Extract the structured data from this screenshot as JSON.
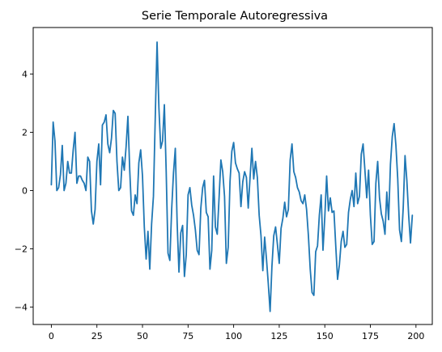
{
  "chart_data": {
    "type": "line",
    "title": "Serie Temporale Autoregressiva",
    "xlabel": "",
    "ylabel": "",
    "xlim": [
      -9.95,
      208.95
    ],
    "ylim": [
      -4.6,
      5.6
    ],
    "x_ticks": [
      0,
      25,
      50,
      75,
      100,
      125,
      150,
      175,
      200
    ],
    "y_ticks": [
      -4,
      -2,
      0,
      2,
      4
    ],
    "grid": false,
    "line_color": "#1f77b4",
    "series": [
      {
        "values": [
          0.2,
          2.35,
          1.7,
          0.0,
          0.1,
          0.55,
          1.55,
          0.0,
          0.25,
          1.0,
          0.6,
          0.6,
          1.4,
          2.0,
          0.25,
          0.5,
          0.5,
          0.35,
          0.25,
          0.0,
          1.15,
          1.0,
          -0.7,
          -1.15,
          -0.65,
          1.0,
          1.6,
          0.2,
          2.25,
          2.35,
          2.6,
          1.6,
          1.3,
          1.8,
          2.75,
          2.65,
          1.0,
          0.0,
          0.1,
          1.15,
          0.7,
          1.5,
          2.55,
          0.7,
          -0.7,
          -0.85,
          -0.15,
          -0.45,
          0.95,
          1.4,
          0.5,
          -1.25,
          -2.35,
          -1.4,
          -2.7,
          -1.15,
          -0.2,
          2.5,
          5.1,
          2.85,
          1.45,
          1.7,
          2.95,
          0.65,
          -2.15,
          -2.4,
          -0.65,
          0.6,
          1.45,
          -1.1,
          -2.8,
          -1.45,
          -1.2,
          -2.95,
          -2.2,
          -0.15,
          0.1,
          -0.5,
          -0.85,
          -1.35,
          -2.05,
          -2.2,
          -0.6,
          0.1,
          0.35,
          -0.75,
          -0.9,
          -2.7,
          -2.05,
          0.5,
          -1.25,
          -1.5,
          -0.25,
          1.05,
          0.65,
          -0.2,
          -2.5,
          -1.95,
          0.3,
          1.35,
          1.65,
          0.95,
          0.75,
          0.6,
          -0.55,
          0.3,
          0.65,
          0.45,
          -0.6,
          0.45,
          1.45,
          0.4,
          1.0,
          0.45,
          -0.85,
          -1.55,
          -2.75,
          -1.6,
          -2.35,
          -3.2,
          -4.15,
          -2.6,
          -1.55,
          -1.25,
          -1.85,
          -2.5,
          -1.3,
          -0.95,
          -0.4,
          -0.9,
          -0.65,
          1.05,
          1.6,
          0.65,
          0.45,
          0.1,
          -0.05,
          -0.35,
          -0.45,
          -0.15,
          -0.65,
          -1.55,
          -2.7,
          -3.5,
          -3.6,
          -2.1,
          -1.9,
          -0.85,
          -0.15,
          -2.05,
          -0.9,
          0.5,
          -0.7,
          -0.25,
          -0.75,
          -0.7,
          -1.9,
          -3.05,
          -2.55,
          -1.75,
          -1.4,
          -1.95,
          -1.85,
          -0.75,
          -0.3,
          0.0,
          -0.55,
          0.6,
          -0.45,
          -0.2,
          1.25,
          1.6,
          0.7,
          -0.25,
          0.7,
          -0.85,
          -1.85,
          -1.75,
          0.25,
          1.0,
          -0.25,
          -0.8,
          -1.05,
          -1.5,
          -0.05,
          -1.0,
          0.9,
          1.85,
          2.3,
          1.55,
          0.4,
          -1.35,
          -1.75,
          -0.6,
          1.2,
          0.35,
          -0.85,
          -1.8,
          -0.85
        ]
      }
    ]
  }
}
